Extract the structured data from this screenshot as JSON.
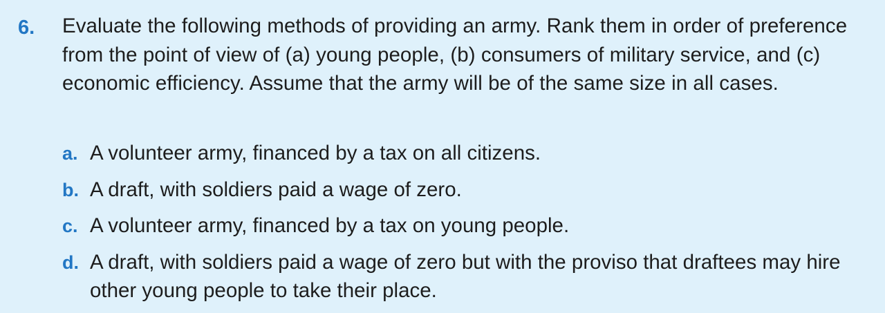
{
  "question": {
    "number": "6.",
    "text": "Evaluate the following methods of providing an army. Rank them in order of preference from the point of view of (a) young people, (b) consumers of military service, and (c) economic efficiency. Assume that the army will be of the same size in all cases.",
    "options": [
      {
        "letter": "a.",
        "text": "A volunteer army, financed by a tax on all citizens."
      },
      {
        "letter": "b.",
        "text": "A draft, with soldiers paid a wage of zero."
      },
      {
        "letter": "c.",
        "text": "A volunteer army, financed by a tax on young people."
      },
      {
        "letter": "d.",
        "text": "A draft, with soldiers paid a wage of zero but with the proviso that draftees may hire other young people to take their place."
      }
    ]
  },
  "colors": {
    "background": "#dff1fb",
    "accent": "#2277c4",
    "text": "#1d1d1d"
  }
}
